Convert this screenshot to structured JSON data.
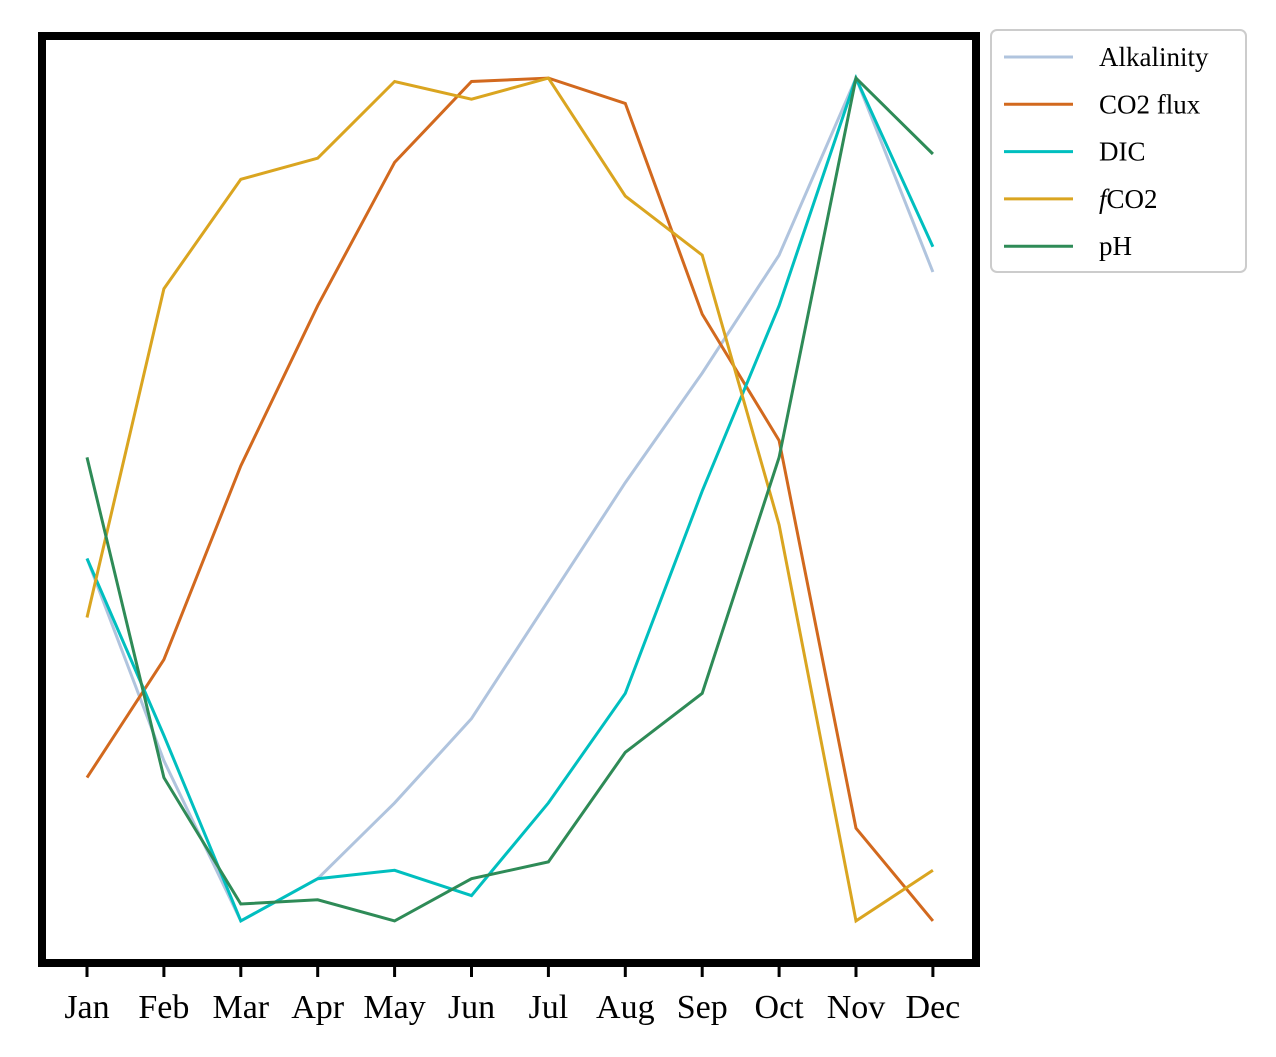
{
  "chart_data": {
    "type": "line",
    "categories": [
      "Jan",
      "Feb",
      "Mar",
      "Apr",
      "May",
      "Jun",
      "Jul",
      "Aug",
      "Sep",
      "Oct",
      "Nov",
      "Dec"
    ],
    "ylim": [
      -0.05,
      1.05
    ],
    "yticks_visible": false,
    "grid": false,
    "legend": "outside-top-right",
    "series": [
      {
        "name": "Alkalinity",
        "color": "#b0c4de",
        "values": [
          0.43,
          0.19,
          0.0,
          0.05,
          0.14,
          0.24,
          0.38,
          0.52,
          0.65,
          0.79,
          1.0,
          0.77
        ]
      },
      {
        "name": "CO2 flux",
        "color": "#d2691e",
        "values": [
          0.17,
          0.31,
          0.54,
          0.73,
          0.9,
          0.996,
          1.0,
          0.97,
          0.72,
          0.57,
          0.11,
          0.0
        ]
      },
      {
        "name": "DIC",
        "color": "#00bfbf",
        "values": [
          0.43,
          0.22,
          0.0,
          0.05,
          0.06,
          0.03,
          0.14,
          0.27,
          0.51,
          0.73,
          1.0,
          0.8
        ]
      },
      {
        "name": "fCO2",
        "label_italic_prefix": "f",
        "label_rest": "CO2",
        "color": "#daa520",
        "values": [
          0.36,
          0.75,
          0.88,
          0.905,
          0.996,
          0.975,
          1.0,
          0.86,
          0.79,
          0.47,
          0.0,
          0.06
        ]
      },
      {
        "name": "pH",
        "color": "#2e8b57",
        "values": [
          0.55,
          0.17,
          0.02,
          0.025,
          0.0,
          0.05,
          0.07,
          0.2,
          0.27,
          0.55,
          1.0,
          0.91
        ]
      }
    ]
  }
}
